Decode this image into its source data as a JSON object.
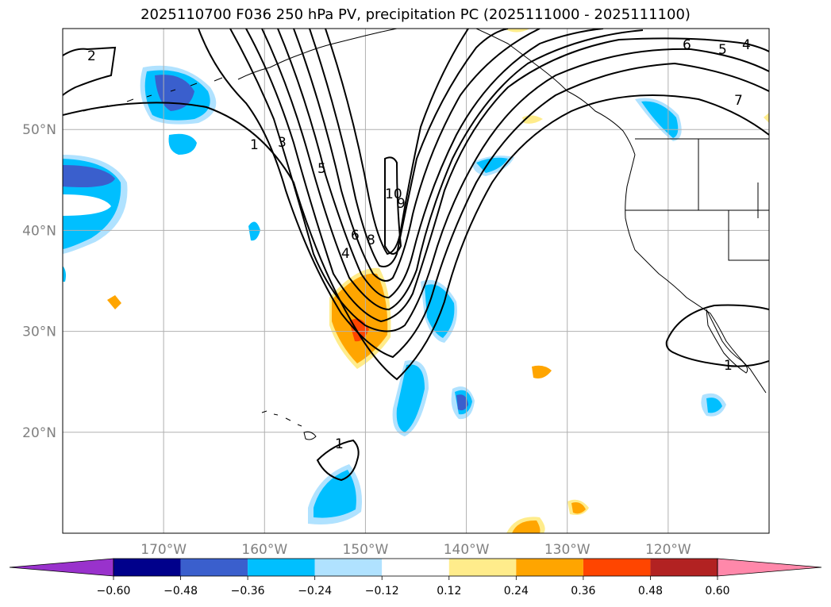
{
  "title": "2025110700 F036 250 hPa PV, precipitation PC (2025111000 - 2025111100)",
  "latitudes": [
    {
      "lat": 50,
      "label": "50°N"
    },
    {
      "lat": 40,
      "label": "40°N"
    },
    {
      "lat": 30,
      "label": "30°N"
    },
    {
      "lat": 20,
      "label": "20°N"
    }
  ],
  "longitudes": [
    {
      "lon": -170,
      "label": "170°W"
    },
    {
      "lon": -160,
      "label": "160°W"
    },
    {
      "lon": -150,
      "label": "150°W"
    },
    {
      "lon": -140,
      "label": "140°W"
    },
    {
      "lon": -130,
      "label": "130°W"
    },
    {
      "lon": -120,
      "label": "120°W"
    }
  ],
  "map_extent": {
    "lon_min": -180,
    "lon_max": -110,
    "lat_min": 10,
    "lat_max": 60
  },
  "colorbar": {
    "levels": [
      -0.6,
      -0.48,
      -0.36,
      -0.24,
      -0.12,
      0.12,
      0.24,
      0.36,
      0.48,
      0.6
    ],
    "tick_labels": [
      "−0.60",
      "−0.48",
      "−0.36",
      "−0.24",
      "−0.12",
      "0.12",
      "0.24",
      "0.36",
      "0.48",
      "0.60"
    ],
    "colors": [
      "#9932CC",
      "#00008B",
      "#3A5FCD",
      "#00BFFF",
      "#B0E2FF",
      "#FFFFFF",
      "#FFEC8B",
      "#FFA500",
      "#FF4500",
      "#B22222",
      "#FF88AA"
    ]
  },
  "contour_labels": [
    "2",
    "1",
    "3",
    "5",
    "10",
    "9",
    "8",
    "6",
    "4",
    "6",
    "5",
    "4",
    "7",
    "1",
    "1"
  ],
  "colors": {
    "contour": "#000000",
    "grid": "#b0b0b0",
    "coast": "#000000"
  }
}
